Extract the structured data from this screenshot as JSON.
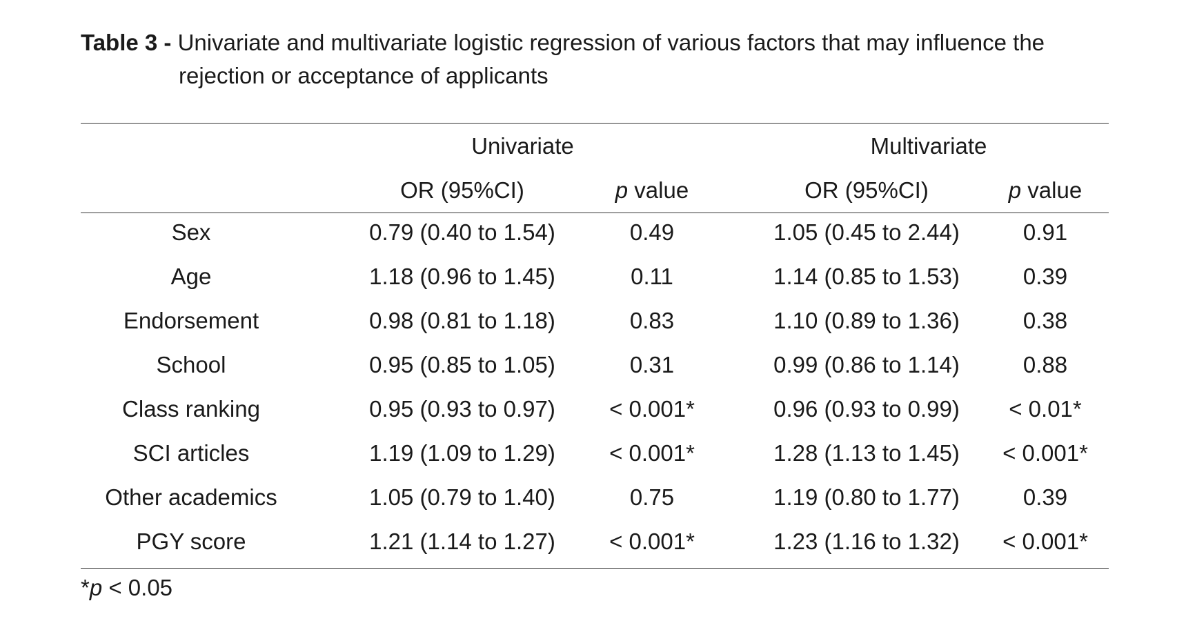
{
  "caption": {
    "label": "Table 3 -",
    "text_line1": "Univariate and multivariate logistic regression of various factors that may influence the",
    "text_line2": "rejection or acceptance of applicants"
  },
  "header": {
    "group_univariate": "Univariate",
    "group_multivariate": "Multivariate",
    "or_label": "OR (95%CI)",
    "p_italic": "p",
    "p_suffix": " value"
  },
  "rows": [
    {
      "variable": "Sex",
      "uni_or": "0.79 (0.40 to 1.54)",
      "uni_p": "0.49",
      "multi_or": "1.05 (0.45 to 2.44)",
      "multi_p": "0.91"
    },
    {
      "variable": "Age",
      "uni_or": "1.18 (0.96 to 1.45)",
      "uni_p": "0.11",
      "multi_or": "1.14 (0.85 to 1.53)",
      "multi_p": "0.39"
    },
    {
      "variable": "Endorsement",
      "uni_or": "0.98 (0.81 to 1.18)",
      "uni_p": "0.83",
      "multi_or": "1.10 (0.89 to 1.36)",
      "multi_p": "0.38"
    },
    {
      "variable": "School",
      "uni_or": "0.95 (0.85 to 1.05)",
      "uni_p": "0.31",
      "multi_or": "0.99 (0.86 to 1.14)",
      "multi_p": "0.88"
    },
    {
      "variable": "Class ranking",
      "uni_or": "0.95 (0.93 to 0.97)",
      "uni_p": "< 0.001*",
      "multi_or": "0.96 (0.93 to 0.99)",
      "multi_p": "< 0.01*"
    },
    {
      "variable": "SCI articles",
      "uni_or": "1.19 (1.09 to 1.29)",
      "uni_p": "< 0.001*",
      "multi_or": "1.28 (1.13 to 1.45)",
      "multi_p": "< 0.001*"
    },
    {
      "variable": "Other academics",
      "uni_or": "1.05 (0.79 to 1.40)",
      "uni_p": "0.75",
      "multi_or": "1.19 (0.80 to 1.77)",
      "multi_p": "0.39"
    },
    {
      "variable": "PGY score",
      "uni_or": "1.21 (1.14 to 1.27)",
      "uni_p": "< 0.001*",
      "multi_or": "1.23 (1.16 to 1.32)",
      "multi_p": "< 0.001*"
    }
  ],
  "footnote": {
    "star": "*",
    "p_italic": "p",
    "rest": " < 0.05"
  }
}
